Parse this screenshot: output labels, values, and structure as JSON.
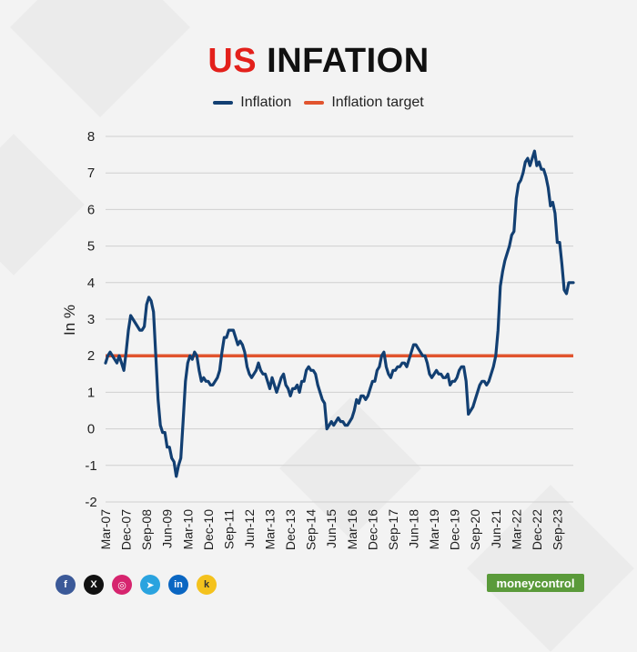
{
  "title": {
    "part1": "US",
    "part2": "INFATION"
  },
  "legend": {
    "inflation": "Inflation",
    "target": "Inflation target"
  },
  "colors": {
    "inflation": "#123f72",
    "target": "#e1542e",
    "title_red": "#e3201b",
    "brand": "#5a9a3a"
  },
  "social_icons": [
    "facebook-icon",
    "x-icon",
    "instagram-icon",
    "telegram-icon",
    "linkedin-icon",
    "koo-icon"
  ],
  "social_glyphs": {
    "facebook": "f",
    "x": "X",
    "instagram": "◎",
    "telegram": "➤",
    "linkedin": "in",
    "koo": "k"
  },
  "brand": {
    "name": "moneycontrol"
  },
  "chart_data": {
    "type": "line",
    "title": "US INFATION",
    "ylabel": "In %",
    "xlabel": "",
    "ylim": [
      -2,
      8
    ],
    "yticks": [
      "8",
      "7",
      "6",
      "5",
      "4",
      "3",
      "2",
      "1",
      "0",
      "-1",
      "-2"
    ],
    "yticks_values": [
      8,
      7,
      6,
      5,
      4,
      3,
      2,
      1,
      0,
      -1,
      -2
    ],
    "xtick_labels": [
      "Mar-07",
      "Dec-07",
      "Sep-08",
      "Jun-09",
      "Mar-10",
      "Dec-10",
      "Sep-11",
      "Jun-12",
      "Mar-13",
      "Dec-13",
      "Sep-14",
      "Jun-15",
      "Mar-16",
      "Dec-16",
      "Sep-17",
      "Jun-18",
      "Mar-19",
      "Dec-19",
      "Sep-20",
      "Jun-21",
      "Mar-22",
      "Dec-22",
      "Sep-23"
    ],
    "x_start": "2007-03",
    "x_step": "monthly",
    "grid": "horizontal",
    "legend_position": "top-center",
    "series": [
      {
        "name": "Inflation",
        "values": [
          1.8,
          2.0,
          2.1,
          2.0,
          1.9,
          1.8,
          2.0,
          1.8,
          1.6,
          2.1,
          2.7,
          3.1,
          3.0,
          2.9,
          2.8,
          2.7,
          2.7,
          2.8,
          3.4,
          3.6,
          3.5,
          3.2,
          2.0,
          0.8,
          0.1,
          -0.1,
          -0.1,
          -0.5,
          -0.5,
          -0.8,
          -0.9,
          -1.3,
          -1.0,
          -0.8,
          0.2,
          1.3,
          1.8,
          2.0,
          1.9,
          2.1,
          2.0,
          1.6,
          1.3,
          1.4,
          1.3,
          1.3,
          1.2,
          1.2,
          1.3,
          1.4,
          1.6,
          2.1,
          2.5,
          2.5,
          2.7,
          2.7,
          2.7,
          2.5,
          2.3,
          2.4,
          2.3,
          2.1,
          1.7,
          1.5,
          1.4,
          1.5,
          1.6,
          1.8,
          1.6,
          1.5,
          1.5,
          1.3,
          1.1,
          1.4,
          1.2,
          1.0,
          1.2,
          1.4,
          1.5,
          1.2,
          1.1,
          0.9,
          1.1,
          1.1,
          1.2,
          1.0,
          1.3,
          1.3,
          1.6,
          1.7,
          1.6,
          1.6,
          1.5,
          1.2,
          1.0,
          0.8,
          0.7,
          0.0,
          0.1,
          0.2,
          0.1,
          0.2,
          0.3,
          0.2,
          0.2,
          0.1,
          0.1,
          0.2,
          0.3,
          0.5,
          0.8,
          0.7,
          0.9,
          0.9,
          0.8,
          0.9,
          1.1,
          1.3,
          1.3,
          1.6,
          1.7,
          2.0,
          2.1,
          1.7,
          1.5,
          1.4,
          1.6,
          1.6,
          1.7,
          1.7,
          1.8,
          1.8,
          1.7,
          1.9,
          2.1,
          2.3,
          2.3,
          2.2,
          2.1,
          2.0,
          2.0,
          1.8,
          1.5,
          1.4,
          1.5,
          1.6,
          1.5,
          1.5,
          1.4,
          1.4,
          1.5,
          1.2,
          1.3,
          1.3,
          1.4,
          1.6,
          1.7,
          1.7,
          1.3,
          0.4,
          0.5,
          0.6,
          0.8,
          1.0,
          1.2,
          1.3,
          1.3,
          1.2,
          1.3,
          1.5,
          1.7,
          2.0,
          2.7,
          3.9,
          4.3,
          4.6,
          4.8,
          5.0,
          5.3,
          5.4,
          6.3,
          6.7,
          6.8,
          7.0,
          7.3,
          7.4,
          7.2,
          7.4,
          7.6,
          7.2,
          7.3,
          7.1,
          7.1,
          6.9,
          6.6,
          6.1,
          6.2,
          5.9,
          5.1,
          5.1,
          4.5,
          3.8,
          3.7,
          4.0,
          4.0,
          4.0
        ]
      },
      {
        "name": "Inflation target",
        "values": [
          2
        ],
        "constant": 2
      }
    ]
  }
}
